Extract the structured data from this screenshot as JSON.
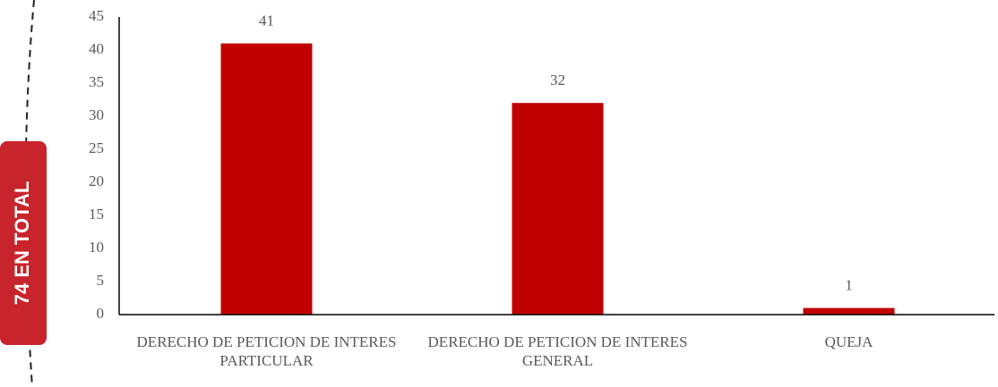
{
  "side_label": "74 EN TOTAL",
  "chart_data": {
    "type": "bar",
    "categories": [
      "DERECHO DE PETICION DE INTERES PARTICULAR",
      "DERECHO DE PETICION DE INTERES GENERAL",
      "QUEJA"
    ],
    "values": [
      41,
      32,
      1
    ],
    "color": "#c00000",
    "ylim": [
      0,
      45
    ],
    "yticks": [
      0,
      5,
      10,
      15,
      20,
      25,
      30,
      35,
      40,
      45
    ],
    "grid": false
  }
}
